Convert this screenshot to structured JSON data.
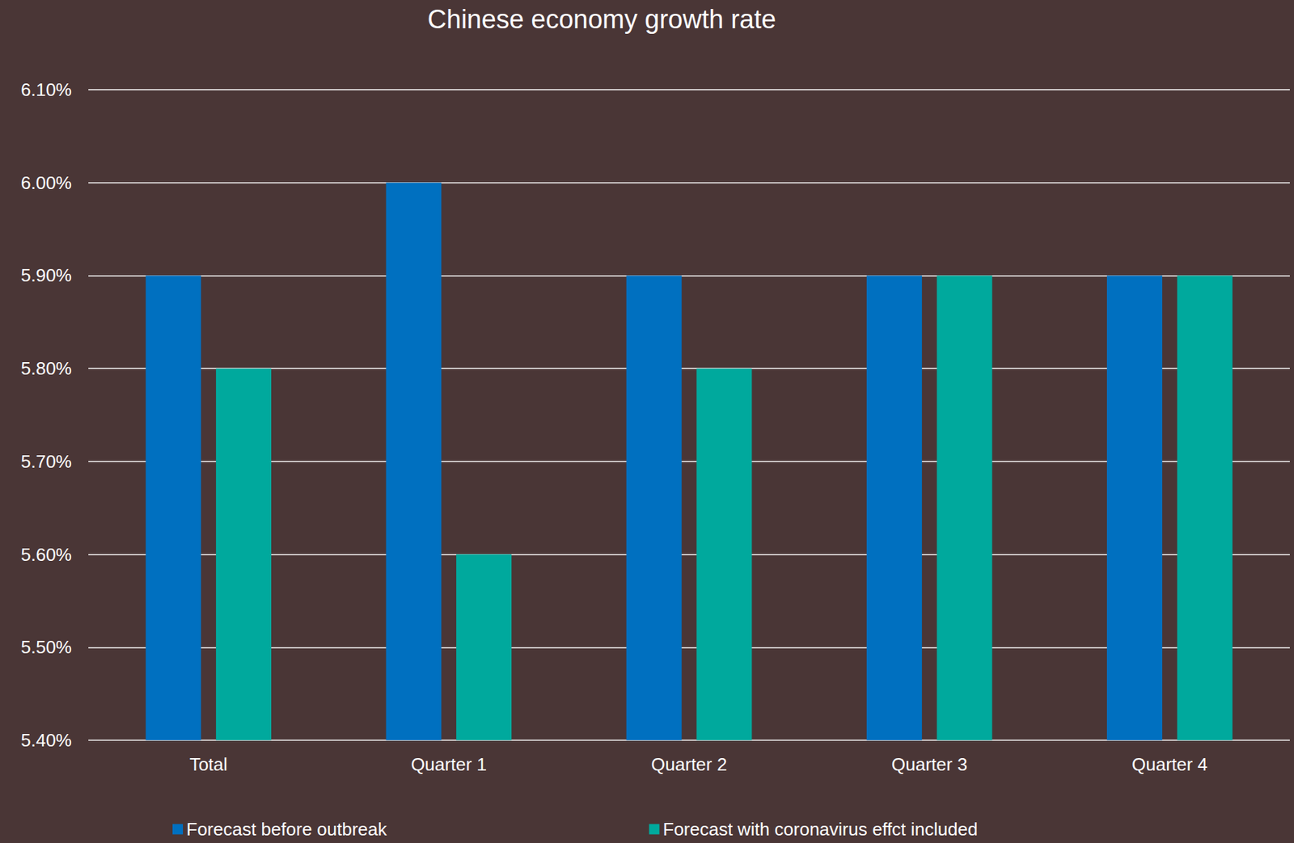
{
  "chart_data": {
    "type": "bar",
    "title": "Chinese economy growth rate",
    "categories": [
      "Total",
      "Quarter 1",
      "Quarter 2",
      "Quarter 3",
      "Quarter 4"
    ],
    "series": [
      {
        "name": "Forecast before outbreak",
        "color": "#0070c0",
        "values": [
          5.9,
          6.0,
          5.9,
          5.9,
          5.9
        ]
      },
      {
        "name": "Forecast with coronavirus effct included",
        "color": "#00a99d",
        "values": [
          5.8,
          5.6,
          5.8,
          5.9,
          5.9
        ]
      }
    ],
    "ylim": [
      5.4,
      6.1
    ],
    "yticks": [
      {
        "value": 5.4,
        "label": "5.40%"
      },
      {
        "value": 5.5,
        "label": "5.50%"
      },
      {
        "value": 5.6,
        "label": "5.60%"
      },
      {
        "value": 5.7,
        "label": "5.70%"
      },
      {
        "value": 5.8,
        "label": "5.80%"
      },
      {
        "value": 5.9,
        "label": "5.90%"
      },
      {
        "value": 6.0,
        "label": "6.00%"
      },
      {
        "value": 6.1,
        "label": "6.10%"
      }
    ],
    "grid": true,
    "legend": "bottom"
  }
}
